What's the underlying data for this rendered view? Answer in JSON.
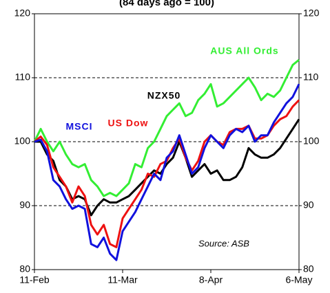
{
  "chart_data": {
    "type": "line",
    "title": "(84 days ago = 100)",
    "annotation": "Source: ASB",
    "x": [
      0,
      2,
      4,
      6,
      8,
      10,
      12,
      14,
      16,
      18,
      20,
      22,
      24,
      26,
      28,
      30,
      32,
      34,
      36,
      38,
      40,
      42,
      44,
      46,
      48,
      50,
      52,
      54,
      56,
      58,
      60,
      62,
      64,
      66,
      68,
      70,
      72,
      74,
      76,
      78,
      80,
      82,
      84
    ],
    "xlim": [
      0,
      84
    ],
    "xticks": [
      {
        "value": 0,
        "label": "11-Feb"
      },
      {
        "value": 28,
        "label": "11-Mar"
      },
      {
        "value": 56,
        "label": "8-Apr"
      },
      {
        "value": 84,
        "label": "6-May"
      }
    ],
    "ylim": [
      80,
      120
    ],
    "yticks": [
      80,
      90,
      100,
      110,
      120
    ],
    "y2lim": [
      80,
      120
    ],
    "y2ticks": [
      80,
      90,
      100,
      110,
      120
    ],
    "grid": true,
    "series": [
      {
        "name": "AUS All Ords",
        "color": "#33ee33",
        "values": [
          100,
          102,
          100,
          98.5,
          100,
          98,
          96.5,
          96,
          96.5,
          94,
          93,
          91.5,
          92,
          91.5,
          92.5,
          93.5,
          96.5,
          96,
          99,
          100,
          102,
          104,
          105,
          106,
          104,
          104.5,
          106.5,
          107.5,
          109,
          105.5,
          106,
          107,
          108,
          109,
          110,
          108.5,
          106.5,
          107.5,
          107,
          108,
          110,
          112,
          112.8
        ]
      },
      {
        "name": "NZX50",
        "color": "#000000",
        "values": [
          100,
          100,
          98,
          97,
          94,
          93,
          91,
          91.5,
          91,
          88.5,
          90,
          91,
          90.5,
          90.5,
          91,
          91.5,
          92.5,
          93.5,
          94.5,
          95.5,
          95,
          96.5,
          97.5,
          100,
          97.5,
          94.5,
          95.5,
          96.5,
          95,
          95.5,
          94,
          94,
          94.5,
          96,
          99,
          98,
          97.5,
          97.5,
          98,
          99,
          100.5,
          102,
          103.5
        ]
      },
      {
        "name": "US Dow",
        "color": "#ee1111",
        "values": [
          100,
          100.8,
          99.5,
          96,
          94.5,
          93,
          90.5,
          93,
          91.5,
          87,
          85.5,
          87,
          84,
          83.5,
          88,
          89.5,
          91,
          92.5,
          95,
          94.5,
          96.5,
          97,
          99,
          100.5,
          97.5,
          95.5,
          97,
          100,
          101,
          100,
          99.5,
          101.5,
          102,
          102,
          102.5,
          100.5,
          100.5,
          101,
          102.5,
          103.5,
          104,
          105.5,
          106.5
        ]
      },
      {
        "name": "MSCI",
        "color": "#1111dd",
        "values": [
          100,
          100.3,
          98.5,
          94,
          93,
          91,
          89.5,
          90,
          89.5,
          84,
          83.5,
          85,
          82.5,
          81.5,
          86,
          87.5,
          89,
          91,
          93,
          95,
          94,
          97.5,
          98.5,
          101,
          98,
          95,
          96,
          99,
          101,
          100,
          99,
          101,
          102,
          101.5,
          102.5,
          100,
          101,
          101,
          103,
          104.5,
          106,
          107,
          109
        ]
      }
    ]
  }
}
